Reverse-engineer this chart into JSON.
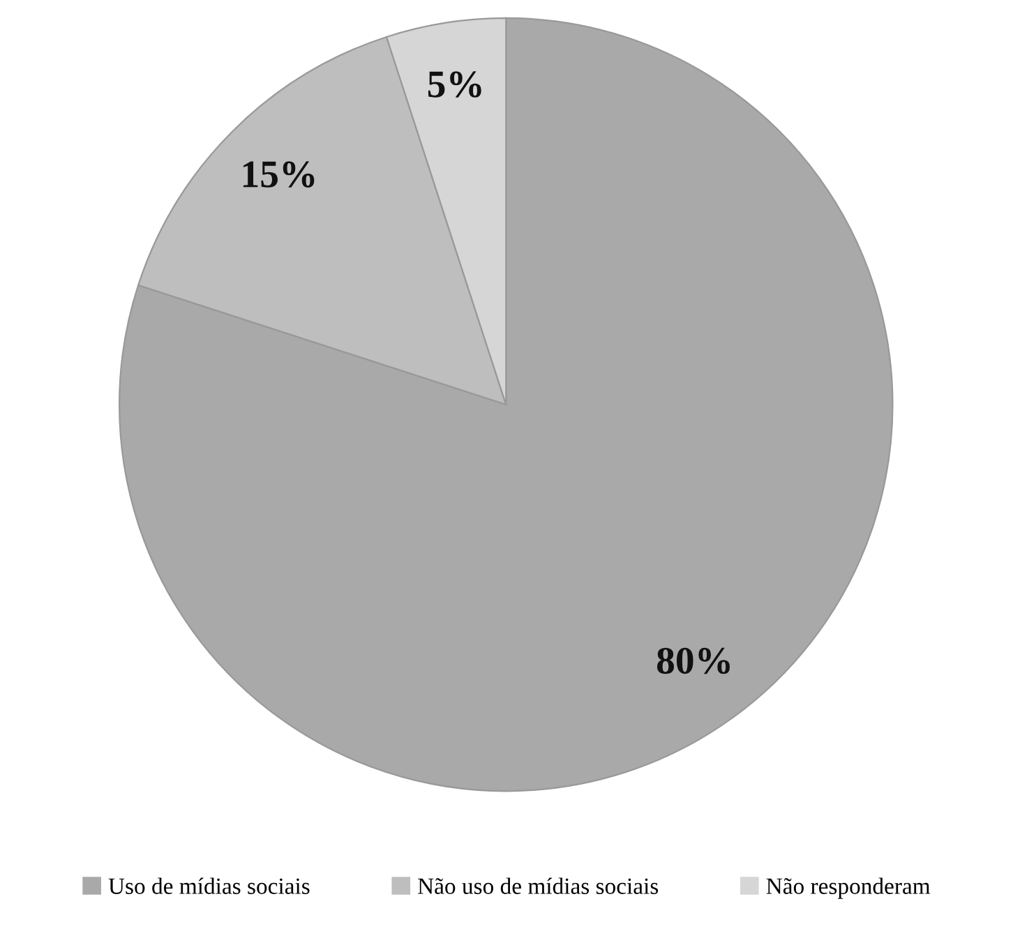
{
  "chart_data": {
    "type": "pie",
    "categories": [
      "Uso de mídias sociais",
      "Não uso de mídias sociais",
      "Não responderam"
    ],
    "values": [
      80,
      15,
      5
    ],
    "colors": [
      "#a9a9a9",
      "#bebebe",
      "#d6d6d6"
    ],
    "value_labels": [
      "80%",
      "15%",
      "5%"
    ],
    "legend": "bottom"
  }
}
